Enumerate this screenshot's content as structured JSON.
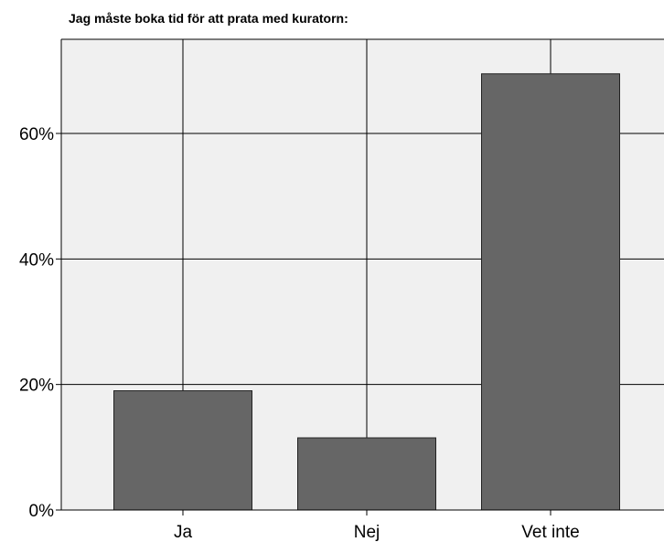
{
  "chart_data": {
    "type": "bar",
    "title": "Jag måste boka tid för att prata med kuratorn:",
    "categories": [
      "Ja",
      "Nej",
      "Vet inte"
    ],
    "values": [
      19.0,
      11.5,
      69.5
    ],
    "ylim": [
      0,
      75
    ],
    "yticks": [
      0,
      20,
      40,
      60
    ],
    "ytick_suffix": "%",
    "grid": true,
    "bar_color": "#666666",
    "plot_bg": "#f0f0f0"
  }
}
